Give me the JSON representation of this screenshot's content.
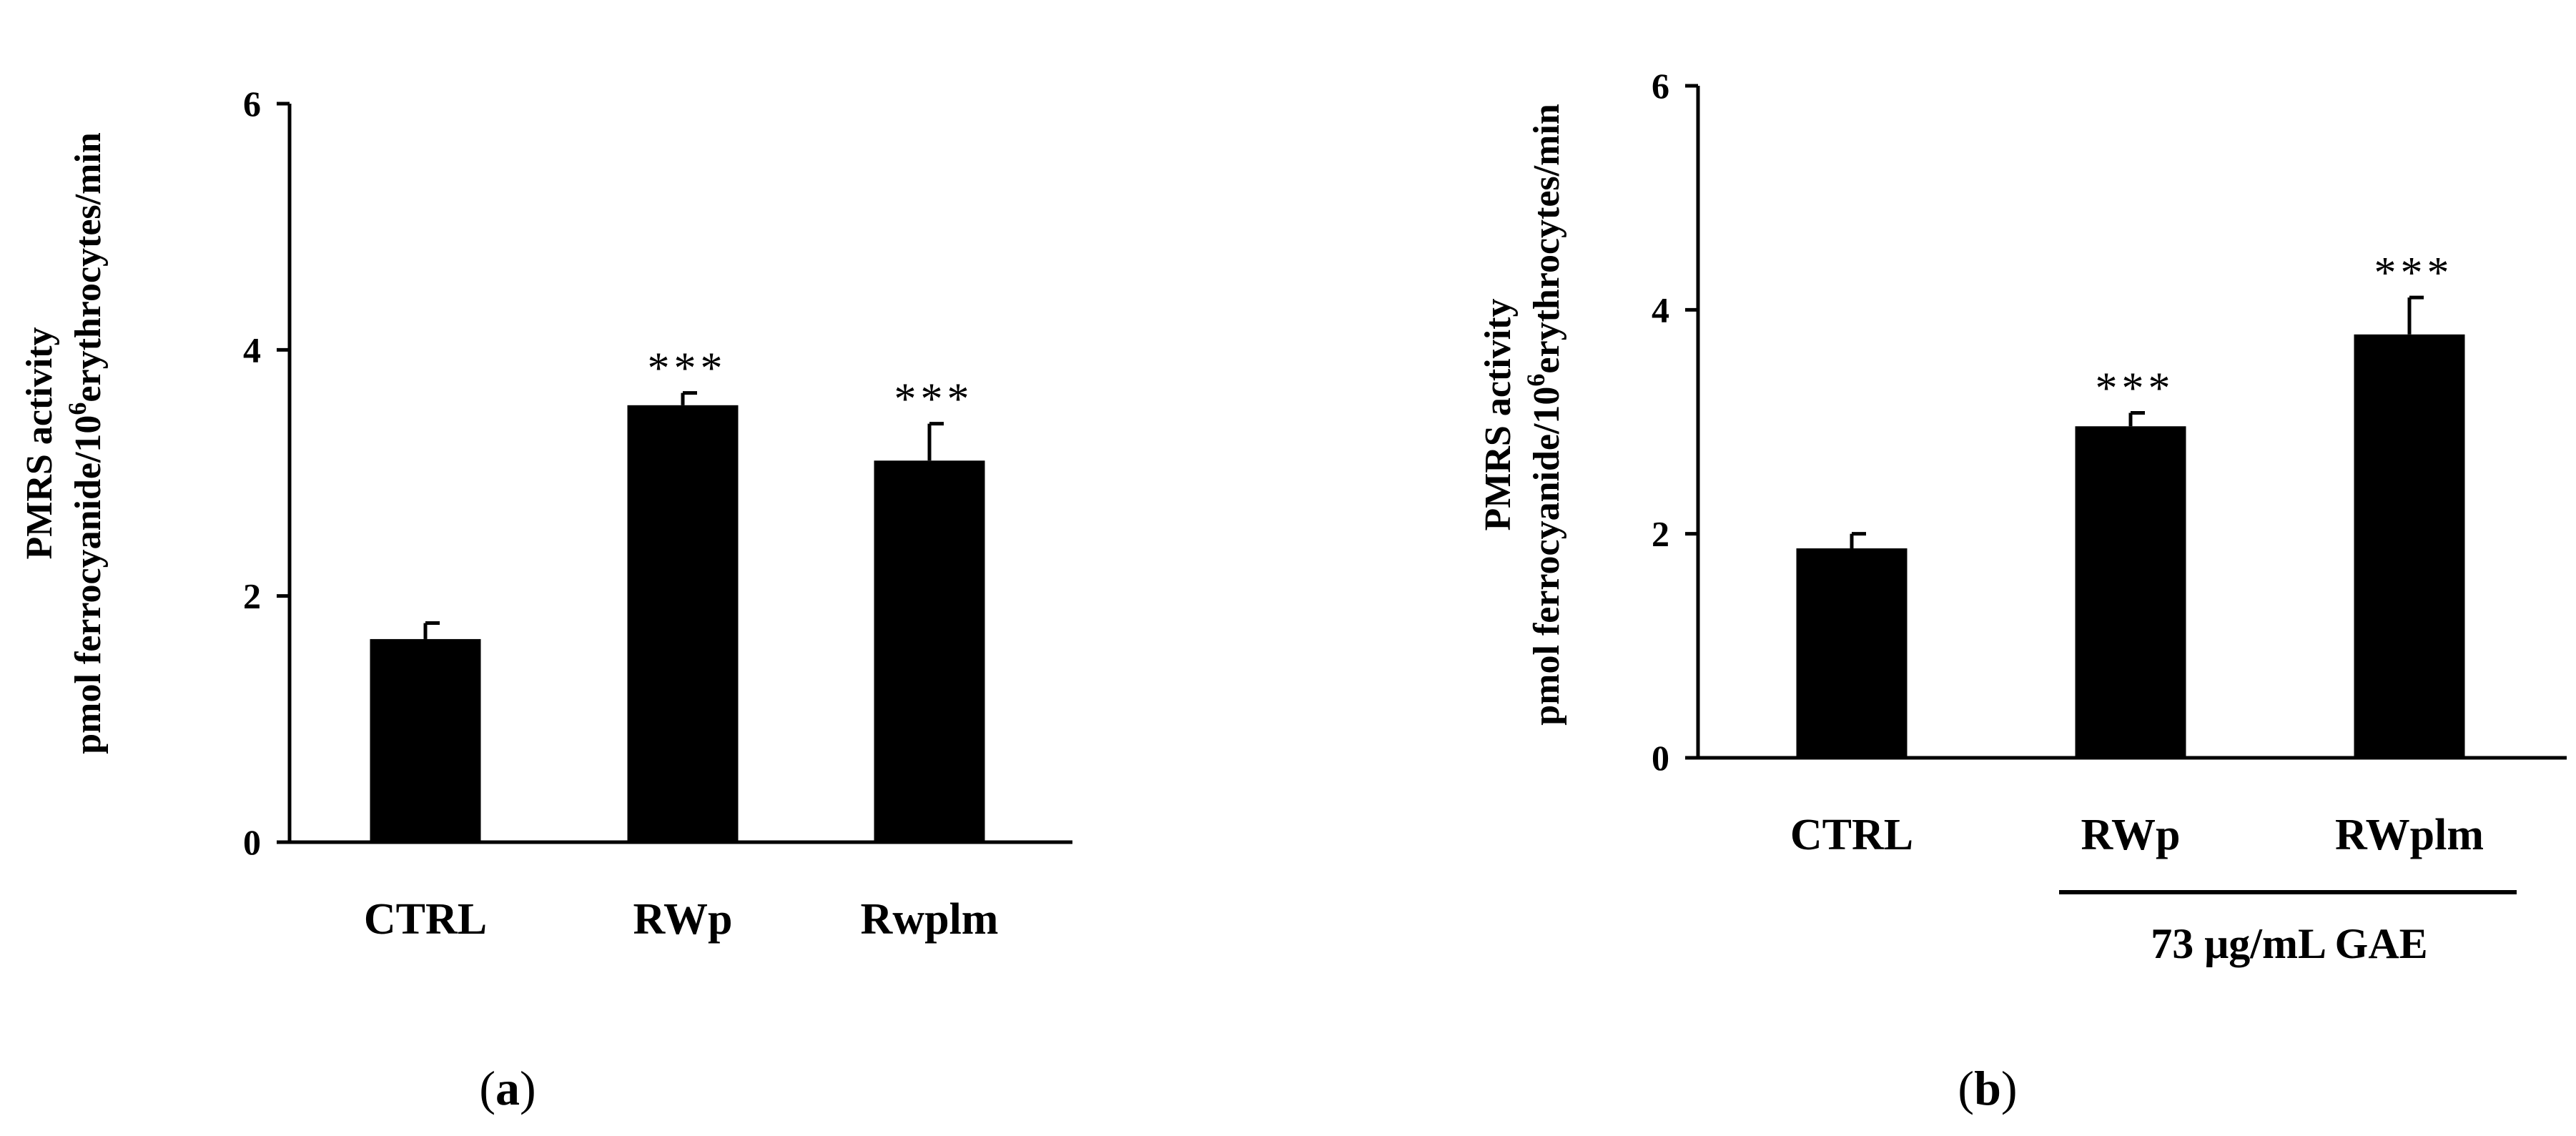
{
  "chart_data": [
    {
      "type": "bar",
      "panel_label": "a",
      "categories": [
        "CTRL",
        "RWp",
        "Rwplm"
      ],
      "values": [
        1.65,
        3.55,
        3.1
      ],
      "errors": [
        0.13,
        0.1,
        0.3
      ],
      "significance": [
        "",
        "***",
        "***"
      ],
      "ylabel_line1": "PMRS activity",
      "ylabel_line2_pre": "pmol ferrocyanide/10",
      "ylabel_line2_sup": "6",
      "ylabel_line2_post": "erythrocytes/min",
      "ylim": [
        0,
        6
      ],
      "yticks": [
        "0",
        "2",
        "4",
        "6"
      ],
      "bar_color": "#000000"
    },
    {
      "type": "bar",
      "panel_label": "b",
      "categories": [
        "CTRL",
        "RWp",
        "RWplm"
      ],
      "values": [
        1.87,
        2.96,
        3.78
      ],
      "errors": [
        0.13,
        0.12,
        0.33
      ],
      "significance": [
        "",
        "***",
        "***"
      ],
      "ylabel_line1": "PMRS activity",
      "ylabel_line2_pre": "pmol ferrocyanide/10",
      "ylabel_line2_sup": "6",
      "ylabel_line2_post": "erythrocytes/min",
      "ylim": [
        0,
        6
      ],
      "yticks": [
        "0",
        "2",
        "4",
        "6"
      ],
      "bracket_label": "73 μg/mL GAE",
      "bar_color": "#000000"
    }
  ]
}
